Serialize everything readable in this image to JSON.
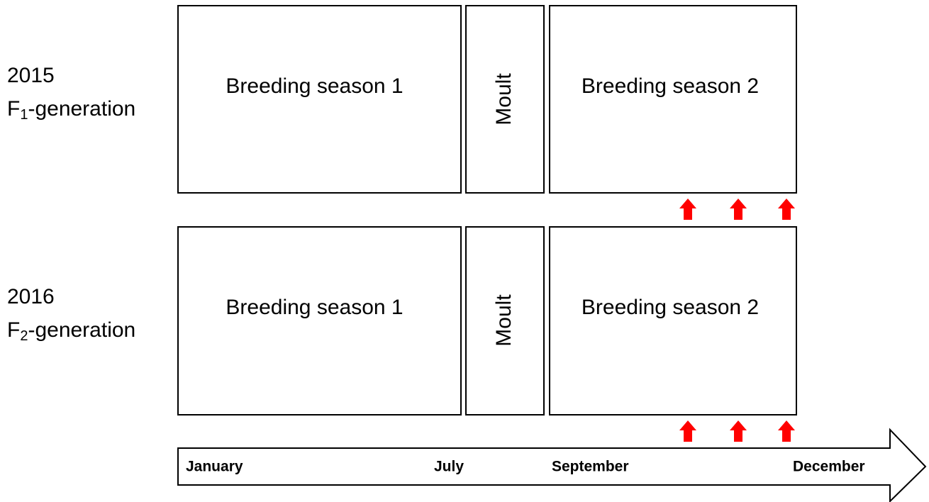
{
  "rows": [
    {
      "year": "2015",
      "generation": {
        "base": "F",
        "sub": "1",
        "rest": "-generation"
      },
      "boxes": [
        "Breeding season 1",
        "Moult",
        "Breeding season 2"
      ]
    },
    {
      "year": "2016",
      "generation": {
        "base": "F",
        "sub": "2",
        "rest": "-generation"
      },
      "boxes": [
        "Breeding season 1",
        "Moult",
        "Breeding season 2"
      ]
    }
  ],
  "timeline": {
    "labels": [
      "January",
      "July",
      "September",
      "December"
    ]
  }
}
